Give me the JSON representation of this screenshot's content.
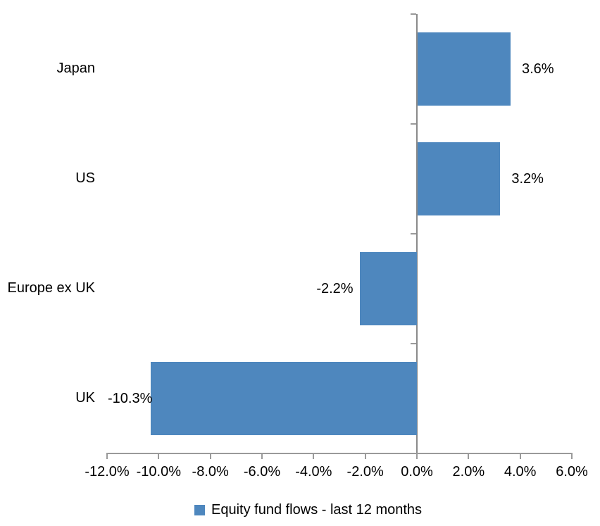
{
  "chart_data": {
    "type": "bar",
    "orientation": "horizontal",
    "title": "",
    "categories": [
      "Japan",
      "US",
      "Europe ex UK",
      "UK"
    ],
    "values": [
      3.6,
      3.2,
      -2.2,
      -10.3
    ],
    "data_labels": [
      "3.6%",
      "3.2%",
      "-2.2%",
      "-10.3%"
    ],
    "series_name": "Equity fund flows - last 12 months",
    "x_tick_labels": [
      "-12.0%",
      "-10.0%",
      "-8.0%",
      "-6.0%",
      "-4.0%",
      "-2.0%",
      "0.0%",
      "2.0%",
      "4.0%",
      "6.0%"
    ],
    "x_tick_values": [
      -12,
      -10,
      -8,
      -6,
      -4,
      -2,
      0,
      2,
      4,
      6
    ],
    "xlim": [
      -12,
      6
    ],
    "grid": false,
    "legend_position": "bottom",
    "colors": {
      "bar": "#4E87BE",
      "x_axis": "#9a9a9a",
      "zero_line": "#8a8a8a",
      "text": "#000000"
    }
  }
}
